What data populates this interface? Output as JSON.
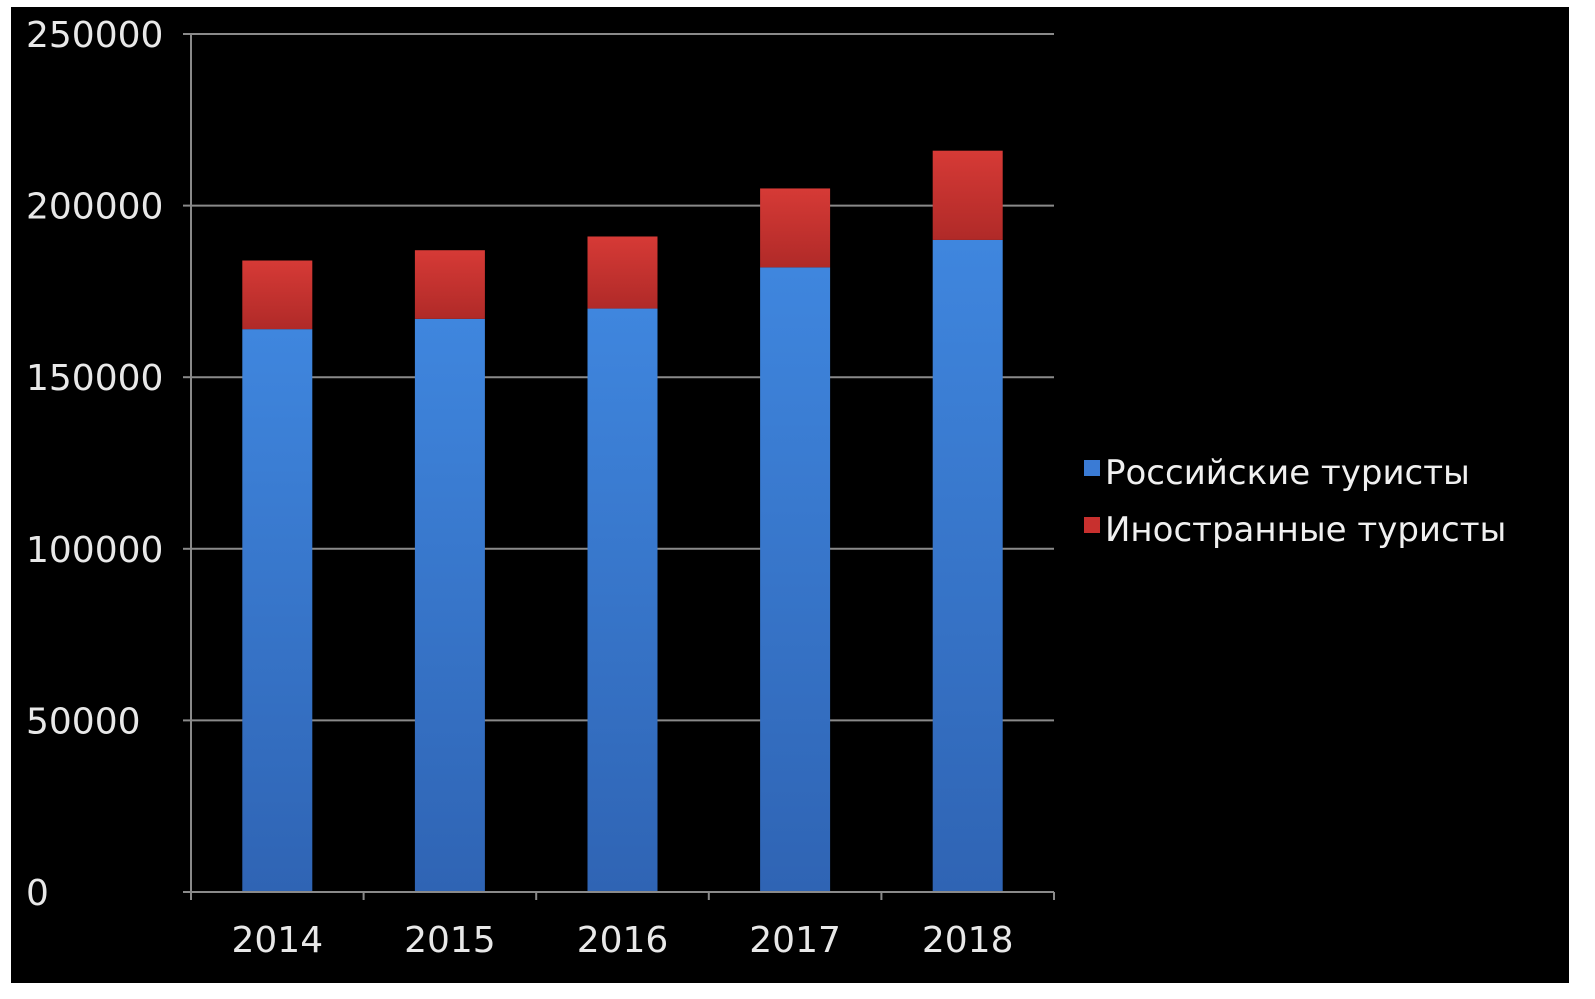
{
  "chart_data": {
    "type": "bar",
    "stacked": true,
    "categories": [
      "2014",
      "2015",
      "2016",
      "2017",
      "2018"
    ],
    "series": [
      {
        "name": "Российские туристы",
        "values": [
          164000,
          167000,
          170000,
          182000,
          190000
        ],
        "color": "#3a7bd5"
      },
      {
        "name": "Иностранные туристы",
        "values": [
          20000,
          20000,
          21000,
          23000,
          26000
        ],
        "color": "#c8302e"
      }
    ],
    "ylim": [
      0,
      250000
    ],
    "yticks": [
      "0",
      "50000",
      "100000",
      "150000",
      "200000",
      "250000"
    ],
    "title": "",
    "xlabel": "",
    "ylabel": "",
    "grid": true,
    "legend_position": "right",
    "background": "#000000"
  }
}
